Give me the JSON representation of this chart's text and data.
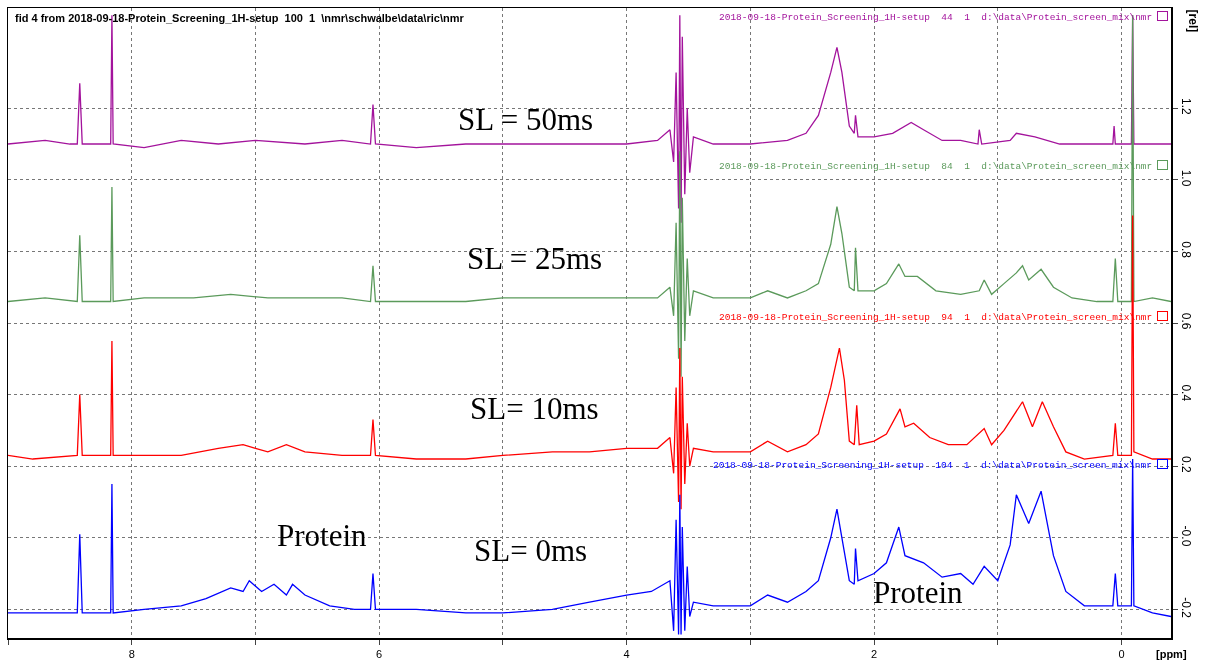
{
  "chart_data": {
    "type": "line",
    "title": "fid 4 from 2018-09-18-Protein_Screening_1H-setup  100  1  \\nmr\\schwalbe\\data\\ric\\nmr",
    "xlabel": "[ppm]",
    "ylabel": "[rel]",
    "xlim": [
      9.0,
      -0.4
    ],
    "xticks": [
      {
        "value": 9,
        "label": null
      },
      8,
      {
        "value": 7,
        "label": null
      },
      6,
      {
        "value": 5,
        "label": null
      },
      4,
      {
        "value": 3,
        "label": null
      },
      2,
      {
        "value": 1,
        "label": null
      },
      0
    ],
    "ylim": [
      -0.28,
      1.48
    ],
    "yticks": [
      -0.2,
      {
        "value": 0,
        "label": "-0.0"
      },
      0.2,
      0.4,
      0.6,
      0.8,
      {
        "value": 1,
        "label": "1.0"
      },
      1.2
    ],
    "grid": true,
    "legend": "right",
    "marker": "none",
    "line_style": "solid",
    "series": [
      {
        "name": "2018-09-18-Protein_Screening_1H-setup  44  1  d:\\data\\Protein_screen_mix\\nmr",
        "color": "#a3139c",
        "x": [
          9.0,
          8.7,
          8.5,
          8.44,
          8.42,
          8.4,
          8.2,
          8.17,
          8.16,
          8.15,
          7.9,
          7.6,
          7.3,
          7.0,
          6.6,
          6.3,
          6.07,
          6.05,
          6.03,
          5.7,
          5.3,
          5.0,
          4.6,
          4.3,
          4.0,
          3.75,
          3.65,
          3.62,
          3.6,
          3.58,
          3.57,
          3.56,
          3.55,
          3.53,
          3.51,
          3.49,
          3.46,
          3.3,
          3.0,
          2.7,
          2.55,
          2.45,
          2.35,
          2.3,
          2.26,
          2.2,
          2.16,
          2.15,
          2.13,
          2.0,
          1.85,
          1.7,
          1.6,
          1.45,
          1.3,
          1.16,
          1.15,
          1.13,
          0.9,
          0.85,
          0.7,
          0.5,
          0.3,
          0.07,
          0.06,
          0.05,
          -0.08,
          -0.09,
          -0.1,
          -0.25,
          -0.4
        ],
        "values": [
          1.1,
          1.11,
          1.1,
          1.1,
          1.27,
          1.1,
          1.1,
          1.1,
          1.46,
          1.1,
          1.09,
          1.11,
          1.1,
          1.11,
          1.1,
          1.11,
          1.1,
          1.21,
          1.1,
          1.09,
          1.1,
          1.1,
          1.1,
          1.1,
          1.1,
          1.11,
          1.14,
          1.05,
          1.3,
          0.92,
          1.46,
          0.88,
          1.4,
          0.96,
          1.2,
          1.02,
          1.12,
          1.1,
          1.1,
          1.11,
          1.13,
          1.18,
          1.3,
          1.37,
          1.3,
          1.15,
          1.13,
          1.18,
          1.12,
          1.12,
          1.13,
          1.16,
          1.14,
          1.11,
          1.11,
          1.1,
          1.14,
          1.1,
          1.11,
          1.13,
          1.12,
          1.1,
          1.1,
          1.1,
          1.15,
          1.1,
          1.1,
          1.46,
          1.1,
          1.1,
          1.1
        ]
      },
      {
        "name": "2018-09-18-Protein_Screening_1H-setup  84  1  d:\\data\\Protein_screen_mix\\nmr",
        "color": "#5b9a5b",
        "x": [
          9.0,
          8.7,
          8.44,
          8.42,
          8.4,
          8.17,
          8.16,
          8.15,
          7.9,
          7.5,
          7.2,
          6.9,
          6.6,
          6.3,
          6.07,
          6.05,
          6.03,
          5.7,
          5.3,
          5.0,
          4.6,
          4.3,
          4.0,
          3.75,
          3.65,
          3.62,
          3.6,
          3.58,
          3.57,
          3.56,
          3.55,
          3.53,
          3.51,
          3.49,
          3.46,
          3.3,
          3.0,
          2.86,
          2.7,
          2.55,
          2.45,
          2.35,
          2.3,
          2.26,
          2.2,
          2.16,
          2.15,
          2.13,
          2.0,
          1.9,
          1.8,
          1.75,
          1.65,
          1.5,
          1.3,
          1.15,
          1.11,
          1.05,
          0.95,
          0.85,
          0.8,
          0.75,
          0.65,
          0.55,
          0.4,
          0.2,
          0.07,
          0.05,
          0.03,
          -0.08,
          -0.09,
          -0.1,
          -0.25,
          -0.4
        ],
        "values": [
          0.66,
          0.67,
          0.66,
          0.845,
          0.66,
          0.66,
          0.98,
          0.66,
          0.67,
          0.67,
          0.68,
          0.67,
          0.67,
          0.67,
          0.66,
          0.76,
          0.66,
          0.66,
          0.66,
          0.67,
          0.67,
          0.67,
          0.67,
          0.67,
          0.7,
          0.62,
          0.88,
          0.5,
          1.08,
          0.45,
          0.95,
          0.55,
          0.78,
          0.62,
          0.69,
          0.67,
          0.67,
          0.69,
          0.67,
          0.69,
          0.71,
          0.82,
          0.925,
          0.85,
          0.7,
          0.69,
          0.81,
          0.69,
          0.69,
          0.71,
          0.765,
          0.73,
          0.73,
          0.69,
          0.68,
          0.69,
          0.72,
          0.68,
          0.71,
          0.74,
          0.76,
          0.72,
          0.75,
          0.7,
          0.67,
          0.66,
          0.66,
          0.78,
          0.66,
          0.66,
          1.46,
          0.66,
          0.67,
          0.66
        ]
      },
      {
        "name": "2018-09-18-Protein_Screening_1H-setup  94  1  d:\\data\\Protein_screen_mix\\nmr",
        "color": "#ff0000",
        "x": [
          9.0,
          8.8,
          8.44,
          8.42,
          8.4,
          8.17,
          8.16,
          8.15,
          7.9,
          7.6,
          7.3,
          7.1,
          7.0,
          6.9,
          6.75,
          6.6,
          6.3,
          6.07,
          6.05,
          6.03,
          5.7,
          5.3,
          5.0,
          4.6,
          4.3,
          4.0,
          3.75,
          3.65,
          3.62,
          3.6,
          3.58,
          3.57,
          3.56,
          3.55,
          3.53,
          3.51,
          3.49,
          3.46,
          3.3,
          3.0,
          2.86,
          2.7,
          2.55,
          2.45,
          2.35,
          2.28,
          2.24,
          2.2,
          2.16,
          2.14,
          2.12,
          2.0,
          1.9,
          1.79,
          1.75,
          1.68,
          1.55,
          1.4,
          1.25,
          1.11,
          1.05,
          0.95,
          0.8,
          0.72,
          0.64,
          0.55,
          0.45,
          0.3,
          0.07,
          0.05,
          0.03,
          -0.08,
          -0.09,
          -0.1,
          -0.25,
          -0.4
        ],
        "values": [
          0.23,
          0.22,
          0.23,
          0.4,
          0.23,
          0.23,
          0.55,
          0.23,
          0.23,
          0.23,
          0.25,
          0.26,
          0.25,
          0.24,
          0.26,
          0.24,
          0.23,
          0.23,
          0.33,
          0.23,
          0.22,
          0.22,
          0.23,
          0.24,
          0.24,
          0.25,
          0.25,
          0.28,
          0.18,
          0.42,
          0.1,
          0.53,
          0.08,
          0.45,
          0.15,
          0.32,
          0.2,
          0.25,
          0.24,
          0.24,
          0.27,
          0.24,
          0.26,
          0.29,
          0.42,
          0.53,
          0.44,
          0.27,
          0.26,
          0.37,
          0.26,
          0.27,
          0.29,
          0.36,
          0.31,
          0.32,
          0.28,
          0.26,
          0.26,
          0.305,
          0.26,
          0.3,
          0.38,
          0.31,
          0.38,
          0.31,
          0.24,
          0.22,
          0.23,
          0.32,
          0.23,
          0.23,
          0.9,
          0.24,
          0.22,
          0.22
        ]
      },
      {
        "name": "2018-09-18-Protein_Screening_1H-setup  104  1  d:\\data\\Protein_screen_mix\\nmr",
        "color": "#0000ff",
        "x": [
          9.0,
          8.8,
          8.44,
          8.42,
          8.4,
          8.17,
          8.16,
          8.15,
          7.9,
          7.6,
          7.4,
          7.2,
          7.1,
          7.05,
          6.95,
          6.85,
          6.75,
          6.7,
          6.6,
          6.4,
          6.2,
          6.07,
          6.05,
          6.03,
          5.7,
          5.3,
          5.0,
          4.6,
          4.3,
          4.0,
          3.8,
          3.65,
          3.62,
          3.6,
          3.58,
          3.57,
          3.56,
          3.55,
          3.53,
          3.51,
          3.49,
          3.46,
          3.3,
          3.0,
          2.86,
          2.7,
          2.55,
          2.45,
          2.35,
          2.3,
          2.26,
          2.2,
          2.16,
          2.15,
          2.13,
          2.0,
          1.9,
          1.8,
          1.75,
          1.6,
          1.45,
          1.3,
          1.2,
          1.11,
          1.0,
          0.9,
          0.85,
          0.75,
          0.65,
          0.55,
          0.45,
          0.3,
          0.07,
          0.05,
          0.03,
          -0.08,
          -0.09,
          -0.1,
          -0.25,
          -0.4
        ],
        "values": [
          -0.21,
          -0.21,
          -0.21,
          0.01,
          -0.21,
          -0.21,
          0.15,
          -0.21,
          -0.2,
          -0.19,
          -0.17,
          -0.14,
          -0.15,
          -0.12,
          -0.15,
          -0.13,
          -0.16,
          -0.13,
          -0.16,
          -0.19,
          -0.2,
          -0.2,
          -0.1,
          -0.2,
          -0.2,
          -0.21,
          -0.21,
          -0.2,
          -0.18,
          -0.16,
          -0.15,
          -0.12,
          -0.26,
          0.05,
          -0.27,
          0.12,
          -0.27,
          0.03,
          -0.26,
          -0.08,
          -0.22,
          -0.18,
          -0.19,
          -0.19,
          -0.16,
          -0.18,
          -0.15,
          -0.12,
          0.0,
          0.08,
          0.0,
          -0.12,
          -0.13,
          -0.03,
          -0.12,
          -0.1,
          -0.07,
          0.03,
          -0.05,
          -0.07,
          -0.11,
          -0.1,
          -0.13,
          -0.08,
          -0.12,
          -0.02,
          0.12,
          0.04,
          0.13,
          -0.05,
          -0.15,
          -0.19,
          -0.19,
          -0.1,
          -0.19,
          -0.19,
          0.22,
          -0.19,
          -0.21,
          -0.22
        ]
      }
    ],
    "annotations": [
      "SL = 50ms",
      "SL = 25ms",
      "SL= 10ms",
      "SL= 0ms",
      "Protein",
      "Protein"
    ]
  }
}
